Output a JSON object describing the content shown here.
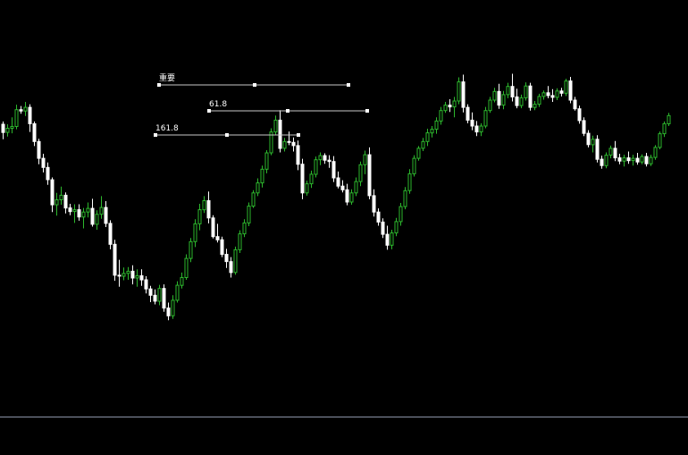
{
  "colors": {
    "background": "#000000",
    "bull": "#2db82d",
    "bear": "#ffffff",
    "separator": "#8a93a6",
    "level_line": "#c8c8c8"
  },
  "levels": [
    {
      "label": "重要"
    },
    {
      "label": "61.8"
    },
    {
      "label": "161.8"
    }
  ],
  "chart_data": {
    "type": "candlestick",
    "title": "",
    "xlabel": "",
    "ylabel": "",
    "grid": false,
    "ylim": [
      0,
      100
    ],
    "candles": [
      [
        72.7,
        73.3,
        69.4,
        70.9
      ],
      [
        70.9,
        72.7,
        70.0,
        71.8
      ],
      [
        71.8,
        74.2,
        70.7,
        72.2
      ],
      [
        72.2,
        77.0,
        71.6,
        75.9
      ],
      [
        75.9,
        76.7,
        75.0,
        75.6
      ],
      [
        75.6,
        77.6,
        74.5,
        76.4
      ],
      [
        76.4,
        77.1,
        71.0,
        72.8
      ],
      [
        72.8,
        73.3,
        67.9,
        68.9
      ],
      [
        68.9,
        69.5,
        63.9,
        65.2
      ],
      [
        65.2,
        66.2,
        62.1,
        63.2
      ],
      [
        63.2,
        64.3,
        59.4,
        60.5
      ],
      [
        60.5,
        61.0,
        53.4,
        55.0
      ],
      [
        55.0,
        57.6,
        52.6,
        56.1
      ],
      [
        56.1,
        59.0,
        55.0,
        57.1
      ],
      [
        57.1,
        57.7,
        53.1,
        54.3
      ],
      [
        54.3,
        55.2,
        52.7,
        53.5
      ],
      [
        53.5,
        55.1,
        51.0,
        53.9
      ],
      [
        53.9,
        55.1,
        51.5,
        52.3
      ],
      [
        52.3,
        54.3,
        49.8,
        53.4
      ],
      [
        53.4,
        55.5,
        52.2,
        54.2
      ],
      [
        54.2,
        56.3,
        50.2,
        50.7
      ],
      [
        50.7,
        53.8,
        49.5,
        52.9
      ],
      [
        52.9,
        56.9,
        51.9,
        54.4
      ],
      [
        54.4,
        55.8,
        50.1,
        50.9
      ],
      [
        50.9,
        51.6,
        45.2,
        46.3
      ],
      [
        46.3,
        47.3,
        38.3,
        39.5
      ],
      [
        39.5,
        42.9,
        37.0,
        39.3
      ],
      [
        39.3,
        41.2,
        38.4,
        39.9
      ],
      [
        39.9,
        41.3,
        38.5,
        40.4
      ],
      [
        40.4,
        41.7,
        37.5,
        38.9
      ],
      [
        38.9,
        40.8,
        37.0,
        39.4
      ],
      [
        39.4,
        40.8,
        37.2,
        38.5
      ],
      [
        38.5,
        39.3,
        35.5,
        36.5
      ],
      [
        36.5,
        37.2,
        33.6,
        35.1
      ],
      [
        35.1,
        36.4,
        33.1,
        33.8
      ],
      [
        33.8,
        37.4,
        32.9,
        36.6
      ],
      [
        36.6,
        37.5,
        31.5,
        32.3
      ],
      [
        32.3,
        33.5,
        29.6,
        30.6
      ],
      [
        30.6,
        35.1,
        29.9,
        34.0
      ],
      [
        34.0,
        38.2,
        33.5,
        37.3
      ],
      [
        37.3,
        40.1,
        36.6,
        39.0
      ],
      [
        39.0,
        44.1,
        38.5,
        43.2
      ],
      [
        43.2,
        47.7,
        42.4,
        46.9
      ],
      [
        46.9,
        51.8,
        45.7,
        50.8
      ],
      [
        50.8,
        55.2,
        49.4,
        53.9
      ],
      [
        53.9,
        56.9,
        53.2,
        55.9
      ],
      [
        55.9,
        57.9,
        50.9,
        52.1
      ],
      [
        52.1,
        52.7,
        47.6,
        48.0
      ],
      [
        48.0,
        50.8,
        46.7,
        47.3
      ],
      [
        47.3,
        48.0,
        43.5,
        44.1
      ],
      [
        44.1,
        45.3,
        41.1,
        42.5
      ],
      [
        42.5,
        43.5,
        39.0,
        40.1
      ],
      [
        40.1,
        45.8,
        39.6,
        45.1
      ],
      [
        45.1,
        49.4,
        44.4,
        48.6
      ],
      [
        48.6,
        51.8,
        47.9,
        51.0
      ],
      [
        51.0,
        55.5,
        50.3,
        54.7
      ],
      [
        54.7,
        58.2,
        54.3,
        57.6
      ],
      [
        57.6,
        60.8,
        56.9,
        59.8
      ],
      [
        59.8,
        63.6,
        58.8,
        62.8
      ],
      [
        62.8,
        67.0,
        61.9,
        66.4
      ],
      [
        66.4,
        71.8,
        65.9,
        71.0
      ],
      [
        71.0,
        74.6,
        70.4,
        73.6
      ],
      [
        73.6,
        75.8,
        66.5,
        67.4
      ],
      [
        67.4,
        69.7,
        66.7,
        68.9
      ],
      [
        68.9,
        71.1,
        68.1,
        68.7
      ],
      [
        68.7,
        69.8,
        66.7,
        68.0
      ],
      [
        68.0,
        69.1,
        62.6,
        63.9
      ],
      [
        63.9,
        65.1,
        56.2,
        57.6
      ],
      [
        57.6,
        60.3,
        57.0,
        59.6
      ],
      [
        59.6,
        62.5,
        58.7,
        61.7
      ],
      [
        61.7,
        65.6,
        61.0,
        64.9
      ],
      [
        64.9,
        66.5,
        63.7,
        65.8
      ],
      [
        65.8,
        66.3,
        64.0,
        64.8
      ],
      [
        64.8,
        65.9,
        63.1,
        64.5
      ],
      [
        64.5,
        65.7,
        60.0,
        60.9
      ],
      [
        60.9,
        62.3,
        58.6,
        59.1
      ],
      [
        59.1,
        60.4,
        57.7,
        58.3
      ],
      [
        58.3,
        59.6,
        54.9,
        55.6
      ],
      [
        55.6,
        58.4,
        55.0,
        57.6
      ],
      [
        57.6,
        61.0,
        56.9,
        60.1
      ],
      [
        60.1,
        64.5,
        59.1,
        63.8
      ],
      [
        63.8,
        66.9,
        61.7,
        66.0
      ],
      [
        66.0,
        67.6,
        56.2,
        57.0
      ],
      [
        57.0,
        58.4,
        52.4,
        53.4
      ],
      [
        53.4,
        54.2,
        50.4,
        51.2
      ],
      [
        51.2,
        52.0,
        47.7,
        48.5
      ],
      [
        48.5,
        50.4,
        45.1,
        46.1
      ],
      [
        46.1,
        49.5,
        45.2,
        48.8
      ],
      [
        48.8,
        52.1,
        48.1,
        51.3
      ],
      [
        51.3,
        55.4,
        50.4,
        54.6
      ],
      [
        54.6,
        58.9,
        54.0,
        58.1
      ],
      [
        58.1,
        62.8,
        57.4,
        61.8
      ],
      [
        61.8,
        65.9,
        61.2,
        65.2
      ],
      [
        65.2,
        67.9,
        64.7,
        67.4
      ],
      [
        67.4,
        69.7,
        66.8,
        68.9
      ],
      [
        68.9,
        71.7,
        67.9,
        70.8
      ],
      [
        70.8,
        72.3,
        69.8,
        71.6
      ],
      [
        71.6,
        74.2,
        70.6,
        73.4
      ],
      [
        73.4,
        76.5,
        72.6,
        75.7
      ],
      [
        75.7,
        77.6,
        75.2,
        76.9
      ],
      [
        76.9,
        78.2,
        75.4,
        76.5
      ],
      [
        76.5,
        78.7,
        74.2,
        77.8
      ],
      [
        77.8,
        83.0,
        77.1,
        82.0
      ],
      [
        82.0,
        83.6,
        75.3,
        76.4
      ],
      [
        76.4,
        77.1,
        72.9,
        73.6
      ],
      [
        73.6,
        75.3,
        71.4,
        72.3
      ],
      [
        72.3,
        73.4,
        70.1,
        71.0
      ],
      [
        71.0,
        72.9,
        70.1,
        72.3
      ],
      [
        72.3,
        76.5,
        71.8,
        75.7
      ],
      [
        75.7,
        78.7,
        75.2,
        78.0
      ],
      [
        78.0,
        80.7,
        77.5,
        79.9
      ],
      [
        79.9,
        81.6,
        76.1,
        76.9
      ],
      [
        76.9,
        80.0,
        76.0,
        79.2
      ],
      [
        79.2,
        81.8,
        78.4,
        81.0
      ],
      [
        81.0,
        83.8,
        77.7,
        78.7
      ],
      [
        78.7,
        80.5,
        76.2,
        76.8
      ],
      [
        76.8,
        79.2,
        76.2,
        78.5
      ],
      [
        78.5,
        81.9,
        77.9,
        81.1
      ],
      [
        81.1,
        81.8,
        75.7,
        76.4
      ],
      [
        76.4,
        77.8,
        75.8,
        77.1
      ],
      [
        77.1,
        79.4,
        76.5,
        78.8
      ],
      [
        78.8,
        80.1,
        78.1,
        79.6
      ],
      [
        79.6,
        81.1,
        78.4,
        79.0
      ],
      [
        79.0,
        80.4,
        77.6,
        78.6
      ],
      [
        78.6,
        80.6,
        78.0,
        80.0
      ],
      [
        80.0,
        80.7,
        78.8,
        79.5
      ],
      [
        79.5,
        82.7,
        78.9,
        82.2
      ],
      [
        82.2,
        83.1,
        77.3,
        78.0
      ],
      [
        78.0,
        78.7,
        75.7,
        76.1
      ],
      [
        76.1,
        76.8,
        72.8,
        73.5
      ],
      [
        73.5,
        74.2,
        70.1,
        70.7
      ],
      [
        70.7,
        71.4,
        67.6,
        68.2
      ],
      [
        68.2,
        70.2,
        66.5,
        69.4
      ],
      [
        69.4,
        70.3,
        64.3,
        65.0
      ],
      [
        65.0,
        65.8,
        62.9,
        63.6
      ],
      [
        63.6,
        66.5,
        63.0,
        65.9
      ],
      [
        65.9,
        68.0,
        65.2,
        67.4
      ],
      [
        67.4,
        69.0,
        64.6,
        65.3
      ],
      [
        65.3,
        66.2,
        63.9,
        64.6
      ],
      [
        64.6,
        66.0,
        63.4,
        65.3
      ],
      [
        65.3,
        66.7,
        64.0,
        64.7
      ],
      [
        64.7,
        66.0,
        63.6,
        65.2
      ],
      [
        65.2,
        66.4,
        63.8,
        64.4
      ],
      [
        64.4,
        66.1,
        63.9,
        65.6
      ],
      [
        65.6,
        66.4,
        63.4,
        64.0
      ],
      [
        64.0,
        66.0,
        63.5,
        65.4
      ],
      [
        65.4,
        68.1,
        64.9,
        67.6
      ],
      [
        67.6,
        71.1,
        67.2,
        70.6
      ],
      [
        70.6,
        73.3,
        69.9,
        72.8
      ],
      [
        72.8,
        75.2,
        72.3,
        74.6
      ]
    ]
  }
}
